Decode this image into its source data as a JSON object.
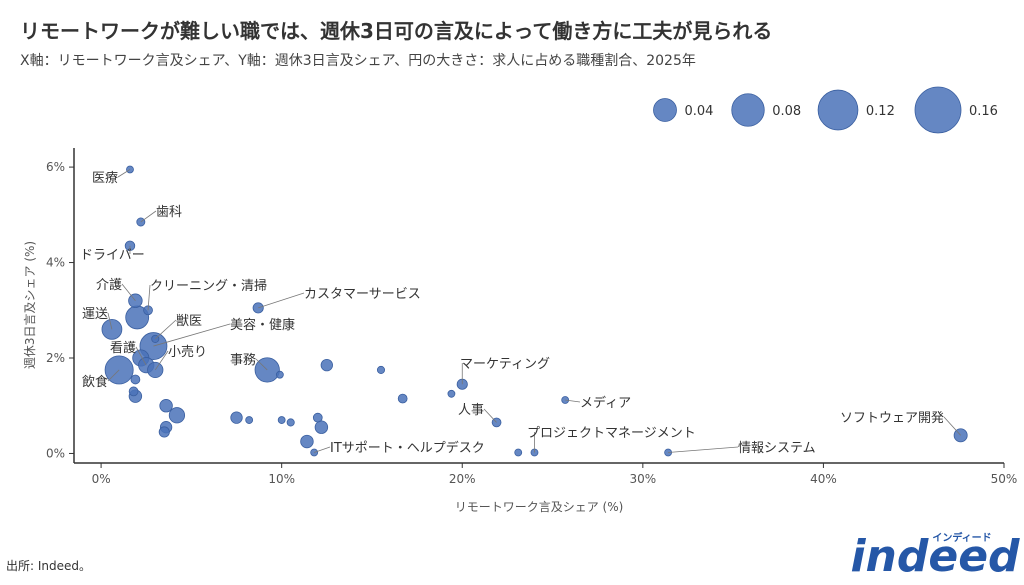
{
  "title": "リモートワークが難しい職では、週休3日可の言及によって働き方に工夫が見られる",
  "subtitle": "X軸：リモートワーク言及シェア、Y軸：週休3日言及シェア、円の大きさ：求人に占める職種割合、2025年",
  "source": "出所: Indeed。",
  "logo": {
    "text": "indeed",
    "katakana": "インディード"
  },
  "colors": {
    "bubble": "#4a72b8",
    "bubble_edge": "#3a5fa0"
  },
  "chart_data": {
    "type": "scatter",
    "xlabel": "リモートワーク言及シェア (%)",
    "ylabel": "週休3日言及シェア (%)",
    "xlim": [
      -1.5,
      50
    ],
    "ylim": [
      -0.2,
      6.4
    ],
    "xticks": [
      {
        "value": 0,
        "label": "0%"
      },
      {
        "value": 10,
        "label": "10%"
      },
      {
        "value": 20,
        "label": "20%"
      },
      {
        "value": 30,
        "label": "30%"
      },
      {
        "value": 40,
        "label": "40%"
      },
      {
        "value": 50,
        "label": "50%"
      }
    ],
    "yticks": [
      {
        "value": 0,
        "label": "0%"
      },
      {
        "value": 2,
        "label": "2%"
      },
      {
        "value": 4,
        "label": "4%"
      },
      {
        "value": 6,
        "label": "6%"
      }
    ],
    "grid": false,
    "legend": {
      "placement": "top-right",
      "items": [
        {
          "size": 0.04,
          "label": "0.04"
        },
        {
          "size": 0.08,
          "label": "0.08"
        },
        {
          "size": 0.12,
          "label": "0.12"
        },
        {
          "size": 0.16,
          "label": "0.16"
        }
      ]
    },
    "points": [
      {
        "name": "医療",
        "x": 1.6,
        "y": 5.95,
        "size": 0.002,
        "label": true
      },
      {
        "name": "歯科",
        "x": 2.2,
        "y": 4.85,
        "size": 0.005,
        "label": true
      },
      {
        "name": "ドライバー",
        "x": 1.6,
        "y": 4.35,
        "size": 0.007,
        "label": true
      },
      {
        "name": "介護",
        "x": 1.9,
        "y": 3.2,
        "size": 0.014,
        "label": true
      },
      {
        "name": "クリーニング・清掃",
        "x": 2.6,
        "y": 3.0,
        "size": 0.006,
        "label": true
      },
      {
        "name": "カスタマーサービス",
        "x": 8.7,
        "y": 3.05,
        "size": 0.008,
        "label": true
      },
      {
        "name": "運送",
        "x": 0.6,
        "y": 2.6,
        "size": 0.03,
        "label": true
      },
      {
        "name": "",
        "x": 2.0,
        "y": 2.85,
        "size": 0.04,
        "label": false
      },
      {
        "name": "獣医",
        "x": 3.0,
        "y": 2.4,
        "size": 0.004,
        "label": true
      },
      {
        "name": "美容・健康",
        "x": 2.9,
        "y": 2.25,
        "size": 0.055,
        "label": true
      },
      {
        "name": "",
        "x": 2.2,
        "y": 2.0,
        "size": 0.02,
        "label": false
      },
      {
        "name": "看護",
        "x": 2.5,
        "y": 1.85,
        "size": 0.018,
        "label": true
      },
      {
        "name": "小売り",
        "x": 3.0,
        "y": 1.75,
        "size": 0.018,
        "label": true
      },
      {
        "name": "飲食",
        "x": 1.0,
        "y": 1.75,
        "size": 0.06,
        "label": true
      },
      {
        "name": "事務",
        "x": 9.2,
        "y": 1.75,
        "size": 0.045,
        "label": true
      },
      {
        "name": "",
        "x": 9.9,
        "y": 1.65,
        "size": 0.001,
        "label": false
      },
      {
        "name": "",
        "x": 12.5,
        "y": 1.85,
        "size": 0.01,
        "label": false
      },
      {
        "name": "",
        "x": 15.5,
        "y": 1.75,
        "size": 0.004,
        "label": false
      },
      {
        "name": "",
        "x": 1.9,
        "y": 1.55,
        "size": 0.006,
        "label": false
      },
      {
        "name": "",
        "x": 1.8,
        "y": 1.3,
        "size": 0.006,
        "label": false
      },
      {
        "name": "",
        "x": 1.9,
        "y": 1.2,
        "size": 0.012,
        "label": false
      },
      {
        "name": "",
        "x": 3.6,
        "y": 1.0,
        "size": 0.012,
        "label": false
      },
      {
        "name": "",
        "x": 4.2,
        "y": 0.8,
        "size": 0.018,
        "label": false
      },
      {
        "name": "",
        "x": 3.6,
        "y": 0.55,
        "size": 0.01,
        "label": false
      },
      {
        "name": "",
        "x": 3.5,
        "y": 0.45,
        "size": 0.008,
        "label": false
      },
      {
        "name": "",
        "x": 7.5,
        "y": 0.75,
        "size": 0.01,
        "label": false
      },
      {
        "name": "",
        "x": 8.2,
        "y": 0.7,
        "size": 0.003,
        "label": false
      },
      {
        "name": "",
        "x": 10.0,
        "y": 0.7,
        "size": 0.003,
        "label": false
      },
      {
        "name": "",
        "x": 10.5,
        "y": 0.65,
        "size": 0.004,
        "label": false
      },
      {
        "name": "",
        "x": 12.0,
        "y": 0.75,
        "size": 0.006,
        "label": false
      },
      {
        "name": "",
        "x": 12.2,
        "y": 0.55,
        "size": 0.012,
        "label": false
      },
      {
        "name": "",
        "x": 11.4,
        "y": 0.25,
        "size": 0.012,
        "label": false
      },
      {
        "name": "ITサポート・ヘルプデスク",
        "x": 11.8,
        "y": 0.02,
        "size": 0.0008,
        "label": true
      },
      {
        "name": "マーケティング",
        "x": 20.0,
        "y": 1.45,
        "size": 0.008,
        "label": true
      },
      {
        "name": "",
        "x": 19.4,
        "y": 1.25,
        "size": 0.002,
        "label": false
      },
      {
        "name": "",
        "x": 16.7,
        "y": 1.15,
        "size": 0.006,
        "label": false
      },
      {
        "name": "メディア",
        "x": 25.7,
        "y": 1.12,
        "size": 0.003,
        "label": true
      },
      {
        "name": "人事",
        "x": 21.9,
        "y": 0.65,
        "size": 0.006,
        "label": true
      },
      {
        "name": "",
        "x": 23.1,
        "y": 0.02,
        "size": 0.0008,
        "label": false
      },
      {
        "name": "プロジェクトマネージメント",
        "x": 24.0,
        "y": 0.02,
        "size": 0.0008,
        "label": true
      },
      {
        "name": "情報システム",
        "x": 31.4,
        "y": 0.02,
        "size": 0.0008,
        "label": true
      },
      {
        "name": "ソフトウェア開発",
        "x": 47.6,
        "y": 0.38,
        "size": 0.013,
        "label": true
      }
    ]
  }
}
